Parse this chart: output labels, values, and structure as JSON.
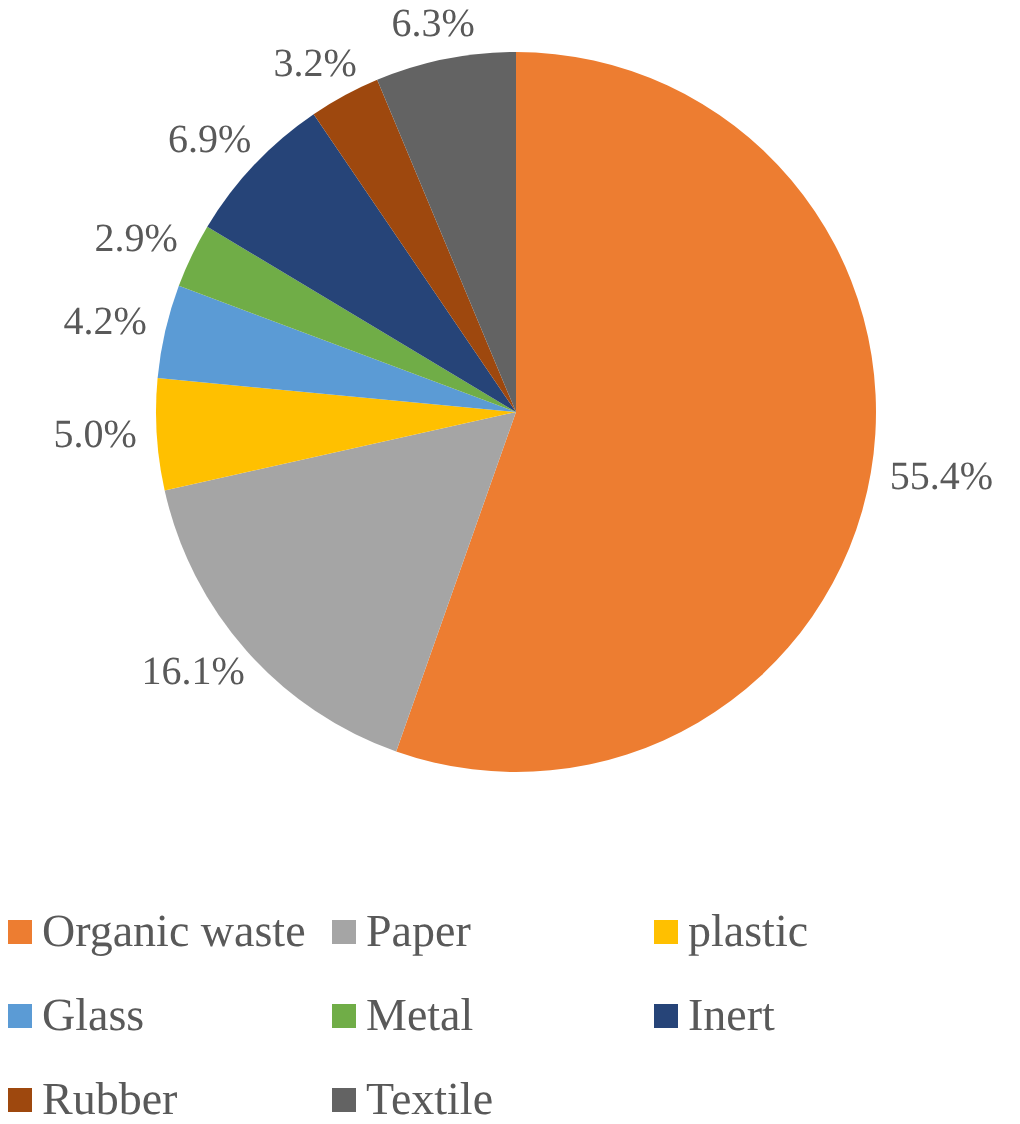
{
  "chart_data": {
    "type": "pie",
    "categories": [
      "Organic waste",
      "Paper",
      "plastic",
      "Glass",
      "Metal",
      "Inert",
      "Rubber",
      "Textile"
    ],
    "values": [
      55.4,
      16.1,
      5.0,
      4.2,
      2.9,
      6.9,
      3.2,
      6.3
    ],
    "colors": [
      "#ed7d31",
      "#a5a5a5",
      "#ffc000",
      "#5b9bd5",
      "#70ad47",
      "#264478",
      "#9e480e",
      "#636363"
    ],
    "value_labels": [
      "55.4%",
      "16.1%",
      "5.0%",
      "4.2%",
      "2.9%",
      "6.9%",
      "3.2%",
      "6.3%"
    ],
    "legend": "bottom"
  }
}
